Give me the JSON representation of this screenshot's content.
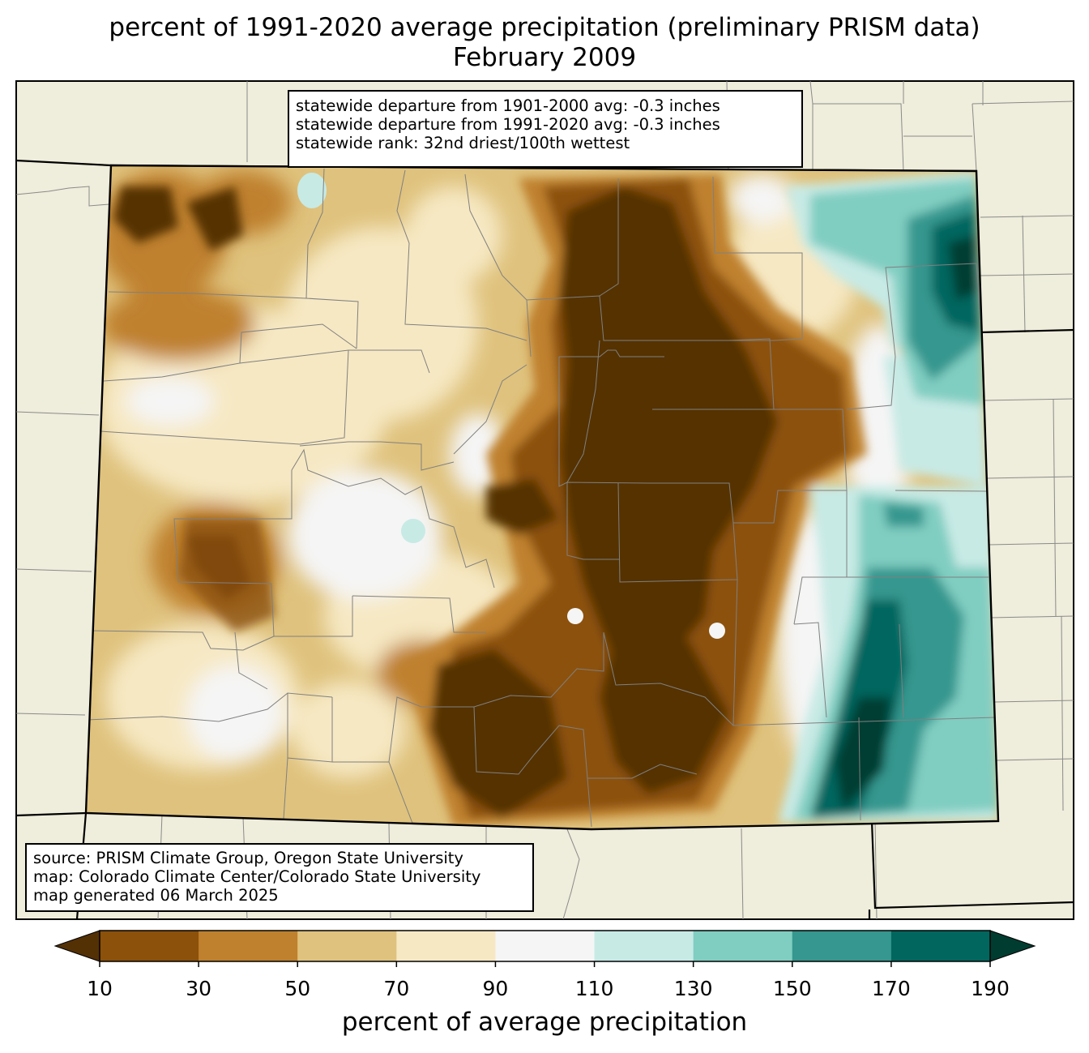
{
  "title_line1": "percent of 1991-2020 average precipitation (preliminary PRISM data)",
  "title_line2": "February 2009",
  "stats": {
    "line1": "statewide departure from 1901-2000 avg: -0.3 inches",
    "line2": "statewide departure from 1991-2020 avg: -0.3 inches",
    "line3": "statewide rank: 32nd driest/100th wettest"
  },
  "credits": {
    "line1": "source: PRISM Climate Group, Oregon State University",
    "line2": "map: Colorado Climate Center/Colorado State University",
    "line3": "map generated 06 March 2025"
  },
  "colorbar": {
    "label": "percent of average precipitation",
    "ticks": [
      "10",
      "30",
      "50",
      "70",
      "90",
      "110",
      "130",
      "150",
      "170",
      "190"
    ],
    "colors": [
      "#543005",
      "#8c510a",
      "#bf812d",
      "#dfc27d",
      "#f6e8c3",
      "#f5f5f5",
      "#c7eae5",
      "#80cdc1",
      "#35978f",
      "#01665e",
      "#003c30"
    ],
    "extend": "both"
  },
  "map_colors": {
    "background": "#efeddb",
    "state_outline": "#000000",
    "county_lines": "#7a7a7a"
  }
}
